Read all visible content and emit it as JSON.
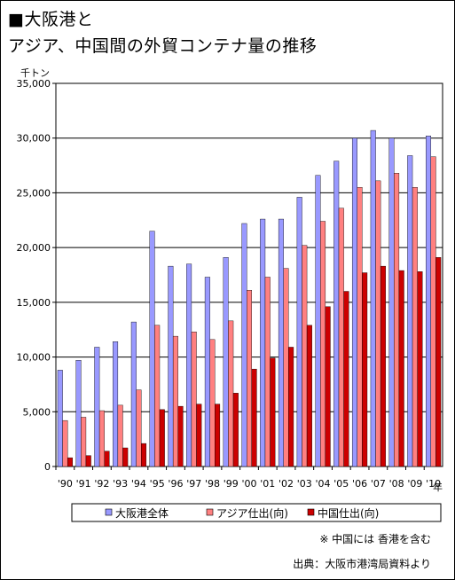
{
  "title_line1": "■大阪港と",
  "title_line2": "アジア、中国間の外貿コンテナ量の推移",
  "note": "※ 中国には 香港を含む",
  "source": "出典：大阪市港湾局資料より",
  "chart_data": {
    "type": "bar",
    "title": "大阪港とアジア、中国間の外貿コンテナ量の推移",
    "ylabel": "千トン",
    "xunit": "年",
    "ylim": [
      0,
      35000
    ],
    "yticks": [
      0,
      5000,
      10000,
      15000,
      20000,
      25000,
      30000,
      35000
    ],
    "ytick_labels": [
      "0",
      "5,000",
      "10,000",
      "15,000",
      "20,000",
      "25,000",
      "30,000",
      "35,000"
    ],
    "categories": [
      "'90",
      "'91",
      "'92",
      "'93",
      "'94",
      "'95",
      "'96",
      "'97",
      "'98",
      "'99",
      "'00",
      "'01",
      "'02",
      "'03",
      "'04",
      "'05",
      "'06",
      "'07",
      "'08",
      "'09",
      "'10"
    ],
    "grid": true,
    "legend_position": "bottom",
    "series": [
      {
        "name": "大阪港全体",
        "color": "#9999ff",
        "values": [
          8800,
          9700,
          10900,
          11400,
          13200,
          21500,
          18300,
          18500,
          17300,
          19100,
          22200,
          22600,
          22600,
          24600,
          26600,
          27900,
          30000,
          30700,
          30000,
          28400,
          30200
        ]
      },
      {
        "name": "アジア仕出(向)",
        "color": "#ff8080",
        "values": [
          4200,
          4500,
          5100,
          5600,
          7000,
          12900,
          11900,
          12300,
          11600,
          13300,
          16100,
          17300,
          18100,
          20200,
          22400,
          23600,
          25500,
          26100,
          26800,
          25500,
          28300
        ]
      },
      {
        "name": "中国仕出(向)",
        "color": "#cc0000",
        "values": [
          800,
          1000,
          1400,
          1700,
          2100,
          5200,
          5500,
          5700,
          5700,
          6700,
          8900,
          9900,
          10900,
          12900,
          14600,
          16000,
          17700,
          18300,
          17900,
          17800,
          19100
        ]
      }
    ]
  }
}
